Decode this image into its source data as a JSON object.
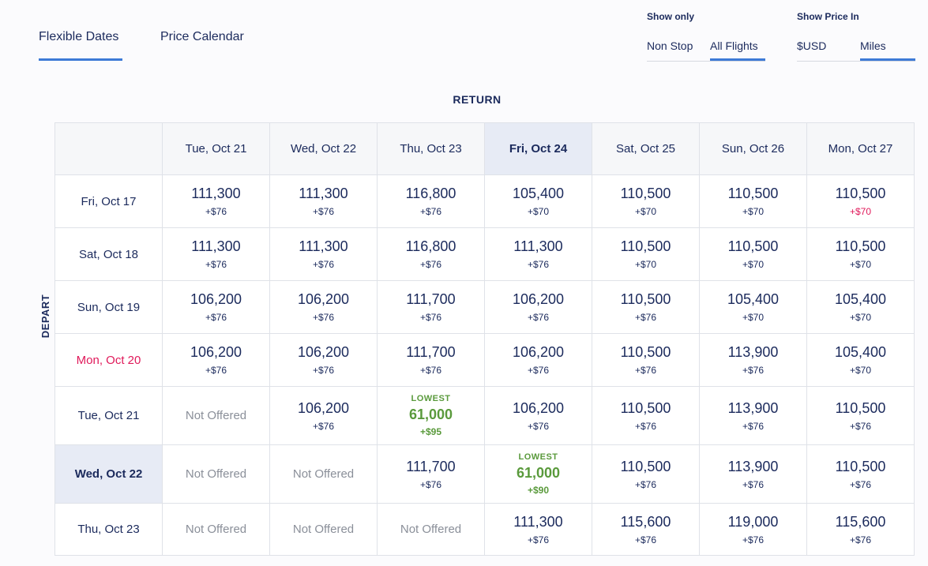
{
  "tabs": [
    "Flexible Dates",
    "Price Calendar"
  ],
  "filters": {
    "show_only": {
      "label": "Show only",
      "options": [
        "Non Stop",
        "All Flights"
      ]
    },
    "show_price_in": {
      "label": "Show Price In",
      "options": [
        "$USD",
        "Miles"
      ]
    }
  },
  "return_label": "RETURN",
  "depart_label": "DEPART",
  "columns": [
    {
      "label": "Tue, Oct 21"
    },
    {
      "label": "Wed, Oct 22"
    },
    {
      "label": "Thu, Oct 23"
    },
    {
      "label": "Fri, Oct 24",
      "selected": true
    },
    {
      "label": "Sat, Oct 25"
    },
    {
      "label": "Sun, Oct 26"
    },
    {
      "label": "Mon, Oct 27"
    }
  ],
  "rows": [
    {
      "label": "Fri, Oct 17",
      "cells": [
        {
          "miles": "111,300",
          "tax": "+$76"
        },
        {
          "miles": "111,300",
          "tax": "+$76"
        },
        {
          "miles": "116,800",
          "tax": "+$76"
        },
        {
          "miles": "105,400",
          "tax": "+$70"
        },
        {
          "miles": "110,500",
          "tax": "+$70"
        },
        {
          "miles": "110,500",
          "tax": "+$70"
        },
        {
          "miles": "110,500",
          "tax": "+$70",
          "tax_color": "#e0195a"
        }
      ]
    },
    {
      "label": "Sat, Oct 18",
      "cells": [
        {
          "miles": "111,300",
          "tax": "+$76"
        },
        {
          "miles": "111,300",
          "tax": "+$76"
        },
        {
          "miles": "116,800",
          "tax": "+$76"
        },
        {
          "miles": "111,300",
          "tax": "+$76"
        },
        {
          "miles": "110,500",
          "tax": "+$70"
        },
        {
          "miles": "110,500",
          "tax": "+$70"
        },
        {
          "miles": "110,500",
          "tax": "+$70"
        }
      ]
    },
    {
      "label": "Sun, Oct 19",
      "cells": [
        {
          "miles": "106,200",
          "tax": "+$76"
        },
        {
          "miles": "106,200",
          "tax": "+$76"
        },
        {
          "miles": "111,700",
          "tax": "+$76"
        },
        {
          "miles": "106,200",
          "tax": "+$76"
        },
        {
          "miles": "110,500",
          "tax": "+$76"
        },
        {
          "miles": "105,400",
          "tax": "+$70"
        },
        {
          "miles": "105,400",
          "tax": "+$70"
        }
      ]
    },
    {
      "label": "Mon, Oct 20",
      "color": "#e0195a",
      "cells": [
        {
          "miles": "106,200",
          "tax": "+$76"
        },
        {
          "miles": "106,200",
          "tax": "+$76"
        },
        {
          "miles": "111,700",
          "tax": "+$76"
        },
        {
          "miles": "106,200",
          "tax": "+$76"
        },
        {
          "miles": "110,500",
          "tax": "+$76"
        },
        {
          "miles": "113,900",
          "tax": "+$76"
        },
        {
          "miles": "105,400",
          "tax": "+$70"
        }
      ]
    },
    {
      "label": "Tue, Oct 21",
      "cells": [
        {
          "text": "Not Offered"
        },
        {
          "miles": "106,200",
          "tax": "+$76"
        },
        {
          "badge": "LOWEST",
          "miles": "61,000",
          "tax": "+$95"
        },
        {
          "miles": "106,200",
          "tax": "+$76"
        },
        {
          "miles": "110,500",
          "tax": "+$76"
        },
        {
          "miles": "113,900",
          "tax": "+$76"
        },
        {
          "miles": "110,500",
          "tax": "+$76"
        }
      ]
    },
    {
      "label": "Wed, Oct 22",
      "selected": true,
      "cells": [
        {
          "text": "Not Offered"
        },
        {
          "text": "Not Offered"
        },
        {
          "miles": "111,700",
          "tax": "+$76"
        },
        {
          "badge": "LOWEST",
          "miles": "61,000",
          "tax": "+$90"
        },
        {
          "miles": "110,500",
          "tax": "+$76"
        },
        {
          "miles": "113,900",
          "tax": "+$76"
        },
        {
          "miles": "110,500",
          "tax": "+$76"
        }
      ]
    },
    {
      "label": "Thu, Oct 23",
      "cells": [
        {
          "text": "Not Offered"
        },
        {
          "text": "Not Offered"
        },
        {
          "text": "Not Offered"
        },
        {
          "miles": "111,300",
          "tax": "+$76"
        },
        {
          "miles": "115,600",
          "tax": "+$76"
        },
        {
          "miles": "119,000",
          "tax": "+$76"
        },
        {
          "miles": "115,600",
          "tax": "+$76"
        }
      ]
    }
  ]
}
